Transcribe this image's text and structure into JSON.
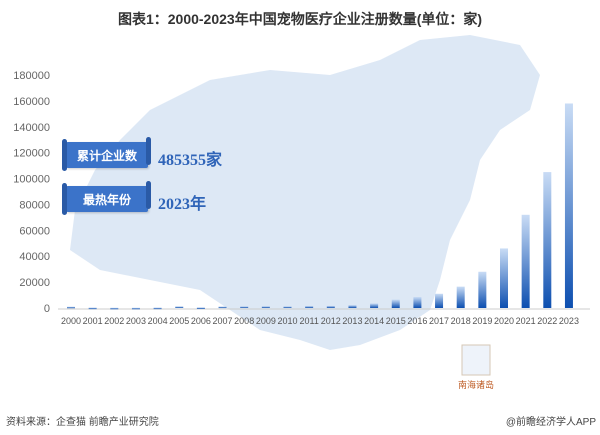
{
  "title": "图表1：2000-2023年中国宠物医疗企业注册数量(单位：家)",
  "badges": [
    {
      "label": "累计企业数",
      "value": "485355家"
    },
    {
      "label": "最热年份",
      "value": "2023年"
    }
  ],
  "map_label": "南海诸岛",
  "source": "资料来源：企查猫 前瞻产业研究院",
  "credit": "@前瞻经济学人APP",
  "colors": {
    "bar_top": "#c9dcf5",
    "bar_bottom": "#0d4fb0",
    "map": "#dde8f5"
  },
  "chart_data": {
    "type": "bar",
    "title": "图表1：2000-2023年中国宠物医疗企业注册数量(单位：家)",
    "categories": [
      "2000",
      "2001",
      "2002",
      "2003",
      "2004",
      "2005",
      "2006",
      "2007",
      "2008",
      "2009",
      "2010",
      "2011",
      "2012",
      "2013",
      "2014",
      "2015",
      "2016",
      "2017",
      "2018",
      "2019",
      "2020",
      "2021",
      "2022",
      "2023"
    ],
    "values": [
      1000,
      300,
      200,
      200,
      300,
      1200,
      400,
      1100,
      1200,
      1300,
      1200,
      1500,
      1600,
      2200,
      3500,
      6500,
      8500,
      11000,
      16500,
      28000,
      46000,
      72000,
      105000,
      158000
    ],
    "ylim": [
      0,
      180000
    ],
    "yticks": [
      "0",
      "20000",
      "40000",
      "60000",
      "80000",
      "100000",
      "120000",
      "140000",
      "160000",
      "180000"
    ],
    "grid": false
  }
}
